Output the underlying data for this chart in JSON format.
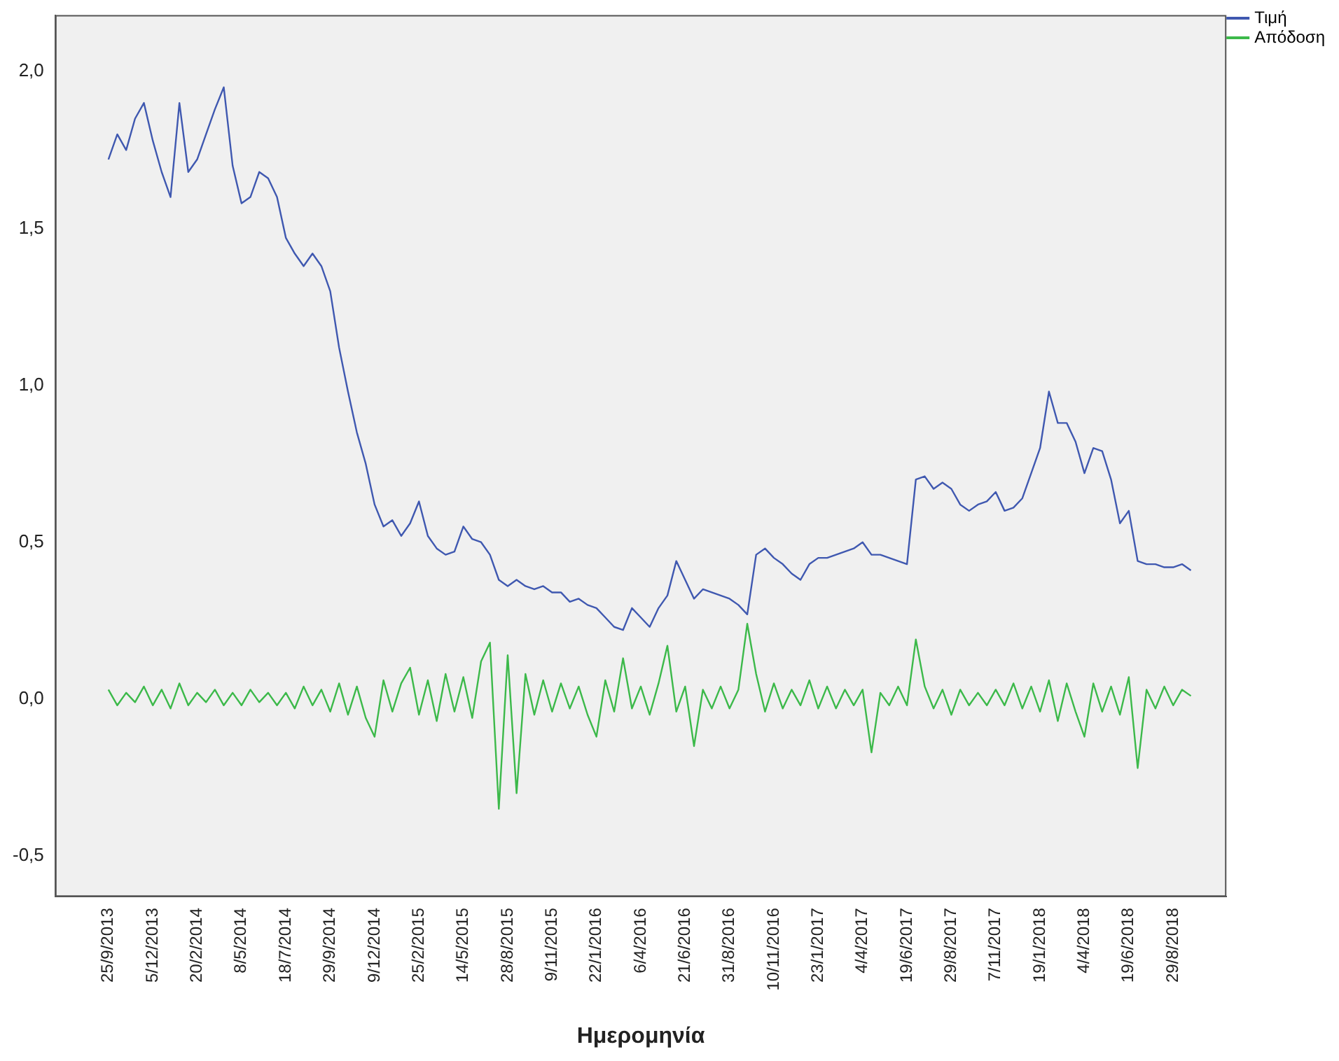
{
  "chart_data": {
    "type": "line",
    "xlabel": "Ημερομηνία",
    "legend": "top right",
    "marker": "none",
    "categories": [
      null,
      null,
      null,
      null,
      null,
      null,
      "25/9/2013",
      null,
      null,
      null,
      null,
      "5/12/2013",
      null,
      null,
      null,
      null,
      "20/2/2014",
      null,
      null,
      null,
      null,
      "8/5/2014",
      null,
      null,
      null,
      null,
      "18/7/2014",
      null,
      null,
      null,
      null,
      "29/9/2014",
      null,
      null,
      null,
      null,
      "9/12/2014",
      null,
      null,
      null,
      null,
      "25/2/2015",
      null,
      null,
      null,
      null,
      "14/5/2015",
      null,
      null,
      null,
      null,
      "28/8/2015",
      null,
      null,
      null,
      null,
      "9/11/2015",
      null,
      null,
      null,
      null,
      "22/1/2016",
      null,
      null,
      null,
      null,
      "6/4/2016",
      null,
      null,
      null,
      null,
      "21/6/2016",
      null,
      null,
      null,
      null,
      "31/8/2016",
      null,
      null,
      null,
      null,
      "10/11/2016",
      null,
      null,
      null,
      null,
      "23/1/2017",
      null,
      null,
      null,
      null,
      "4/4/2017",
      null,
      null,
      null,
      null,
      "19/6/2017",
      null,
      null,
      null,
      null,
      "29/8/2017",
      null,
      null,
      null,
      null,
      "7/11/2017",
      null,
      null,
      null,
      null,
      "19/1/2018",
      null,
      null,
      null,
      null,
      "4/4/2018",
      null,
      null,
      null,
      null,
      "19/6/2018",
      null,
      null,
      null,
      null,
      "29/8/2018",
      null,
      null,
      null,
      null,
      null,
      null
    ],
    "ylim": [
      -0.63,
      2.18
    ],
    "yticks": [
      {
        "value": -0.5,
        "label": "-0,5"
      },
      {
        "value": 0,
        "label": "0,0"
      },
      {
        "value": 0.5,
        "label": "0,5"
      },
      {
        "value": 1,
        "label": "1,0"
      },
      {
        "value": 1.5,
        "label": "1,5"
      },
      {
        "value": 2,
        "label": "2,0"
      }
    ],
    "series": [
      {
        "name": "Τιμή",
        "color": "#3f58b0",
        "values": [
          null,
          null,
          null,
          null,
          null,
          null,
          1.72,
          1.8,
          1.75,
          1.85,
          1.9,
          1.78,
          1.68,
          1.6,
          1.9,
          1.68,
          1.72,
          1.8,
          1.88,
          1.95,
          1.7,
          1.58,
          1.6,
          1.68,
          1.66,
          1.6,
          1.47,
          1.42,
          1.38,
          1.42,
          1.38,
          1.3,
          1.12,
          0.98,
          0.85,
          0.75,
          0.62,
          0.55,
          0.57,
          0.52,
          0.56,
          0.63,
          0.52,
          0.48,
          0.46,
          0.47,
          0.55,
          0.51,
          0.5,
          0.46,
          0.38,
          0.36,
          0.38,
          0.36,
          0.35,
          0.36,
          0.34,
          0.34,
          0.31,
          0.32,
          0.3,
          0.29,
          0.26,
          0.23,
          0.22,
          0.29,
          0.26,
          0.23,
          0.29,
          0.33,
          0.44,
          0.38,
          0.32,
          0.35,
          0.34,
          0.33,
          0.32,
          0.3,
          0.27,
          0.46,
          0.48,
          0.45,
          0.43,
          0.4,
          0.38,
          0.43,
          0.45,
          0.45,
          0.46,
          0.47,
          0.48,
          0.5,
          0.46,
          0.46,
          0.45,
          0.44,
          0.43,
          0.7,
          0.71,
          0.67,
          0.69,
          0.67,
          0.62,
          0.6,
          0.62,
          0.63,
          0.66,
          0.6,
          0.61,
          0.64,
          0.72,
          0.8,
          0.98,
          0.88,
          0.88,
          0.82,
          0.72,
          0.8,
          0.79,
          0.7,
          0.56,
          0.6,
          0.44,
          0.43,
          0.43,
          0.42,
          0.42,
          0.43,
          0.41,
          null,
          null,
          null,
          null
        ]
      },
      {
        "name": "Απόδοση",
        "color": "#3cb94a",
        "values": [
          null,
          null,
          null,
          null,
          null,
          null,
          0.03,
          -0.02,
          0.02,
          -0.01,
          0.04,
          -0.02,
          0.03,
          -0.03,
          0.05,
          -0.02,
          0.02,
          -0.01,
          0.03,
          -0.02,
          0.02,
          -0.02,
          0.03,
          -0.01,
          0.02,
          -0.02,
          0.02,
          -0.03,
          0.04,
          -0.02,
          0.03,
          -0.04,
          0.05,
          -0.05,
          0.04,
          -0.06,
          -0.12,
          0.06,
          -0.04,
          0.05,
          0.1,
          -0.05,
          0.06,
          -0.07,
          0.08,
          -0.04,
          0.07,
          -0.06,
          0.12,
          0.18,
          -0.35,
          0.14,
          -0.3,
          0.08,
          -0.05,
          0.06,
          -0.04,
          0.05,
          -0.03,
          0.04,
          -0.05,
          -0.12,
          0.06,
          -0.04,
          0.13,
          -0.03,
          0.04,
          -0.05,
          0.05,
          0.17,
          -0.04,
          0.04,
          -0.15,
          0.03,
          -0.03,
          0.04,
          -0.03,
          0.03,
          0.24,
          0.08,
          -0.04,
          0.05,
          -0.03,
          0.03,
          -0.02,
          0.06,
          -0.03,
          0.04,
          -0.03,
          0.03,
          -0.02,
          0.03,
          -0.17,
          0.02,
          -0.02,
          0.04,
          -0.02,
          0.19,
          0.04,
          -0.03,
          0.03,
          -0.05,
          0.03,
          -0.02,
          0.02,
          -0.02,
          0.03,
          -0.02,
          0.05,
          -0.03,
          0.04,
          -0.04,
          0.06,
          -0.07,
          0.05,
          -0.04,
          -0.12,
          0.05,
          -0.04,
          0.04,
          -0.05,
          0.07,
          -0.22,
          0.03,
          -0.03,
          0.04,
          -0.02,
          0.03,
          0.01,
          null,
          null,
          null,
          null
        ]
      }
    ]
  }
}
